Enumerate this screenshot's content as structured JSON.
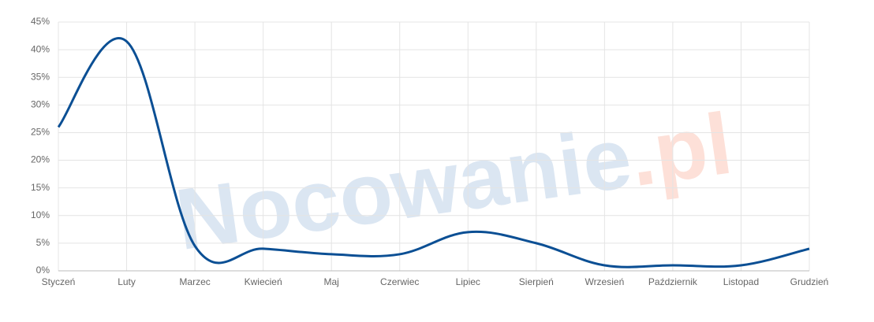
{
  "chart_data": {
    "type": "line",
    "watermark": [
      "Nocowanie",
      ".pl"
    ],
    "categories": [
      "Styczeń",
      "Luty",
      "Marzec",
      "Kwiecień",
      "Maj",
      "Czerwiec",
      "Lipiec",
      "Sierpień",
      "Wrzesień",
      "Październik",
      "Listopad",
      "Grudzień"
    ],
    "series": [
      {
        "color": "#0b4f94",
        "values": [
          26,
          41.5,
          4.5,
          4,
          3,
          3,
          7,
          5,
          1,
          1,
          1,
          4
        ]
      }
    ],
    "ylim": [
      0,
      45
    ],
    "yticks": [
      {
        "value": 0,
        "label": "0%"
      },
      {
        "value": 5,
        "label": "5%"
      },
      {
        "value": 10,
        "label": "10%"
      },
      {
        "value": 15,
        "label": "15%"
      },
      {
        "value": 20,
        "label": "20%"
      },
      {
        "value": 25,
        "label": "25%"
      },
      {
        "value": 30,
        "label": "30%"
      },
      {
        "value": 35,
        "label": "35%"
      },
      {
        "value": 40,
        "label": "40%"
      },
      {
        "value": 45,
        "label": "45%"
      }
    ],
    "grid": true
  }
}
